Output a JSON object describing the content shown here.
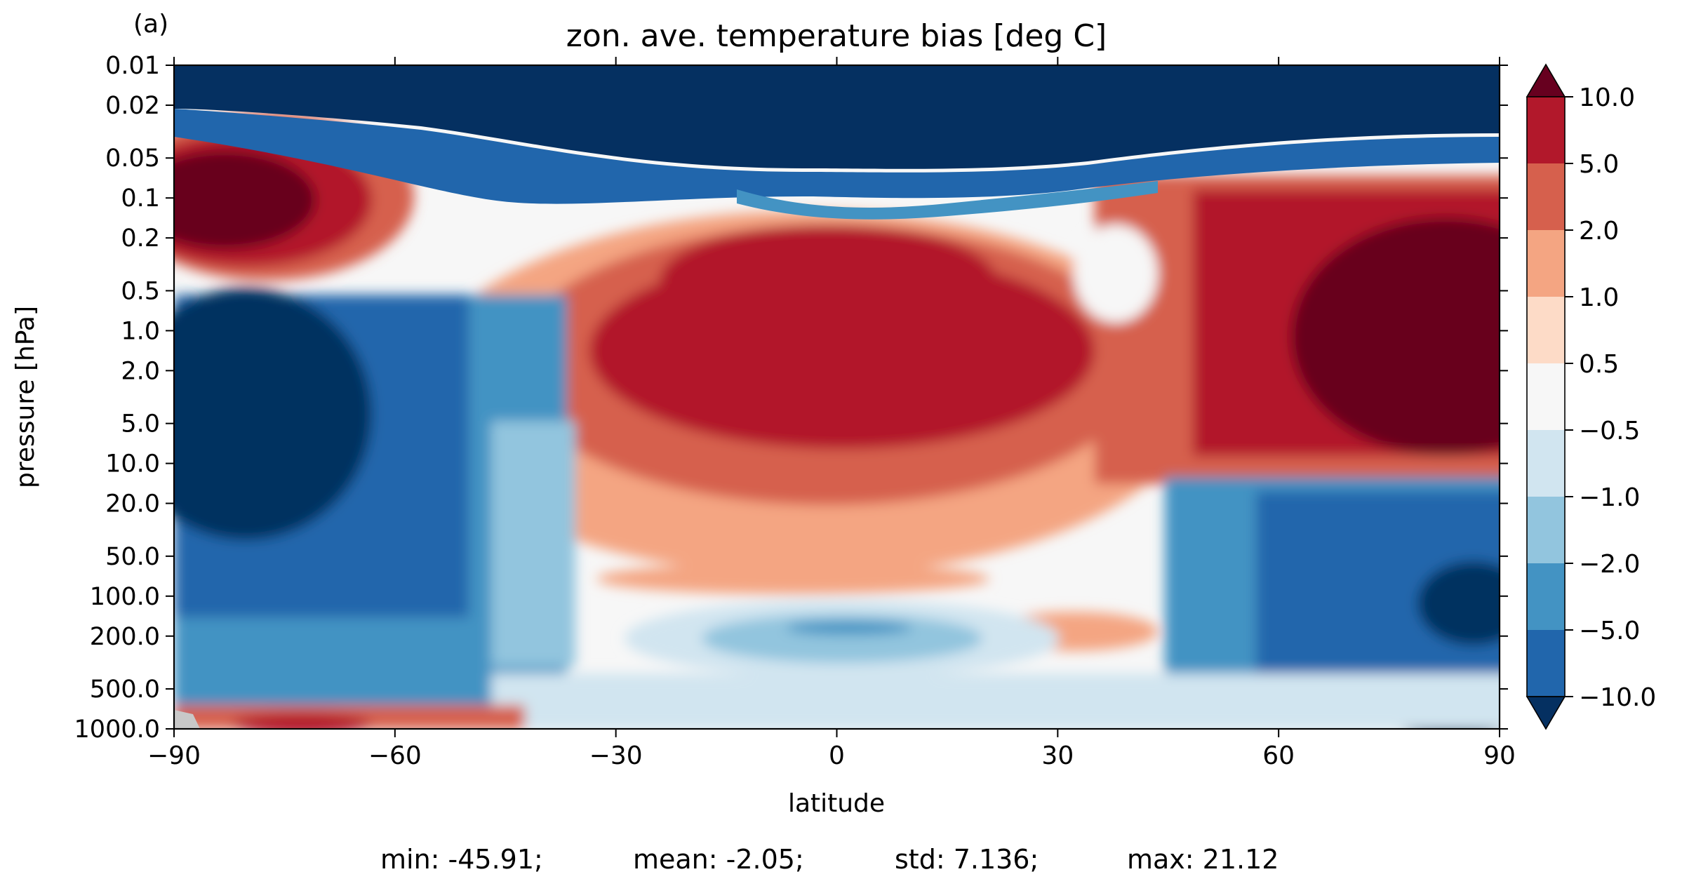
{
  "chart_data": {
    "type": "heatmap",
    "panel_label": "(a)",
    "title": "zon. ave. temperature bias [deg C]",
    "xlabel": "latitude",
    "ylabel": "pressure [hPa]",
    "x_ticks": [
      "−90",
      "−60",
      "−30",
      "0",
      "30",
      "60",
      "90"
    ],
    "x_tick_values": [
      -90,
      -60,
      -30,
      0,
      30,
      60,
      90
    ],
    "xlim": [
      -90,
      90
    ],
    "y_ticks": [
      "0.01",
      "0.02",
      "0.05",
      "0.1",
      "0.2",
      "0.5",
      "1.0",
      "2.0",
      "5.0",
      "10.0",
      "20.0",
      "50.0",
      "100.0",
      "200.0",
      "500.0",
      "1000.0"
    ],
    "y_tick_values": [
      0.01,
      0.02,
      0.05,
      0.1,
      0.2,
      0.5,
      1,
      2,
      5,
      10,
      20,
      50,
      100,
      200,
      500,
      1000
    ],
    "ylim": [
      1000,
      0.01
    ],
    "y_scale": "log",
    "colormap": "RdBu_r",
    "colorbar": {
      "ticks": [
        "10.0",
        "5.0",
        "2.0",
        "1.0",
        "0.5",
        "−0.5",
        "−1.0",
        "−2.0",
        "−5.0",
        "−10.0"
      ],
      "levels": [
        -10,
        -5,
        -2,
        -1,
        -0.5,
        0.5,
        1,
        2,
        5,
        10
      ],
      "extend": "both",
      "colors": [
        "#053061",
        "#2166ac",
        "#4393c3",
        "#92c5de",
        "#d1e5f0",
        "#f7f7f7",
        "#fddbc7",
        "#f4a582",
        "#d6604d",
        "#b2182b",
        "#67001f"
      ]
    },
    "missing_color": "#c8c8c8",
    "grid": false,
    "stats": {
      "min": "min: -45.91;",
      "mean": "mean: -2.05;",
      "std": "std: 7.136;",
      "max": "max: 21.12"
    }
  }
}
